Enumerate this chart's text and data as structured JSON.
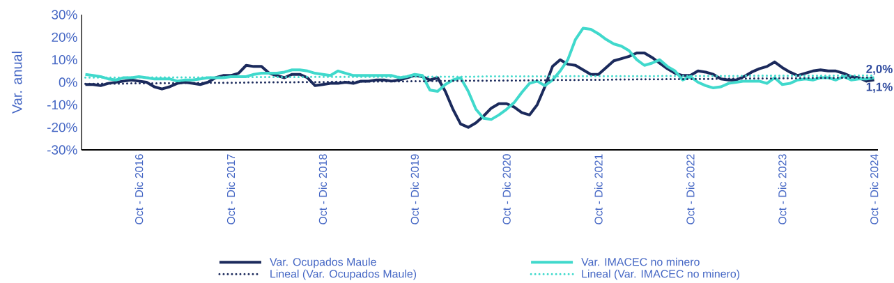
{
  "chart_data": {
    "type": "line",
    "ylabel": "Var. anual",
    "categories": [
      null,
      null,
      null,
      null,
      null,
      null,
      null,
      "Oct - Dic 2016",
      null,
      null,
      null,
      null,
      null,
      null,
      null,
      null,
      null,
      null,
      null,
      "Oct - Dic 2017",
      null,
      null,
      null,
      null,
      null,
      null,
      null,
      null,
      null,
      null,
      null,
      "Oct - Dic 2018",
      null,
      null,
      null,
      null,
      null,
      null,
      null,
      null,
      null,
      null,
      null,
      "Oct - Dic 2019",
      null,
      null,
      null,
      null,
      null,
      null,
      null,
      null,
      null,
      null,
      null,
      "Oct - Dic 2020",
      null,
      null,
      null,
      null,
      null,
      null,
      null,
      null,
      null,
      null,
      null,
      "Oct - Dic 2021",
      null,
      null,
      null,
      null,
      null,
      null,
      null,
      null,
      null,
      null,
      null,
      "Oct - Dic 2022",
      null,
      null,
      null,
      null,
      null,
      null,
      null,
      null,
      null,
      null,
      null,
      "Oct - Dic 2023",
      null,
      null,
      null,
      null,
      null,
      null,
      null,
      null,
      null,
      null,
      null,
      "Oct - Dic 2024"
    ],
    "ylim": [
      -30,
      30
    ],
    "yticks": [
      {
        "value": -30,
        "label": "-30%"
      },
      {
        "value": -20,
        "label": "-20%"
      },
      {
        "value": -10,
        "label": "-10%"
      },
      {
        "value": 0,
        "label": "0%"
      },
      {
        "value": 10,
        "label": "10%"
      },
      {
        "value": 20,
        "label": "20%"
      },
      {
        "value": 30,
        "label": "30%"
      }
    ],
    "legend": "bottom",
    "series": [
      {
        "name": "Var. Ocupados Maule",
        "color": "#1b2a5c",
        "line_style": "solid",
        "values": [
          -1,
          -1,
          -1.5,
          -0.5,
          0,
          0.5,
          1,
          0.5,
          0,
          -2,
          -3,
          -2,
          -0.5,
          0,
          -0.5,
          -1,
          0,
          2,
          3,
          3,
          4,
          7.5,
          7,
          7,
          4,
          3,
          2,
          3.5,
          3.5,
          2,
          -1.5,
          -1,
          -0.5,
          -0.5,
          0,
          -0.5,
          0.5,
          0.5,
          1,
          1,
          0.5,
          1,
          2,
          3,
          2.5,
          1,
          2,
          -4,
          -12,
          -18.5,
          -20,
          -18,
          -15,
          -11.5,
          -9.5,
          -9.5,
          -11,
          -13.5,
          -14.5,
          -10,
          -2,
          7,
          10,
          8,
          7.5,
          5.5,
          3.5,
          3.5,
          6.5,
          9.5,
          10.5,
          11.5,
          13,
          13,
          11,
          8.5,
          6,
          4,
          3,
          3,
          5,
          4.5,
          3.5,
          1.5,
          1,
          1,
          2.5,
          4.5,
          6,
          7,
          9,
          6.5,
          4.5,
          3,
          4,
          5,
          5.5,
          5,
          5,
          4,
          2.5,
          2,
          0.5,
          1.1
        ],
        "value_labels": [
          null,
          null,
          null,
          null,
          null,
          null,
          null,
          null,
          null,
          null,
          null,
          null,
          null,
          null,
          null,
          null,
          null,
          null,
          null,
          null,
          null,
          null,
          null,
          null,
          null,
          null,
          null,
          null,
          null,
          null,
          null,
          null,
          null,
          null,
          null,
          null,
          null,
          null,
          null,
          null,
          null,
          null,
          null,
          null,
          null,
          null,
          null,
          null,
          null,
          null,
          null,
          null,
          null,
          null,
          null,
          null,
          null,
          null,
          null,
          null,
          null,
          null,
          null,
          null,
          null,
          null,
          null,
          null,
          null,
          null,
          null,
          null,
          null,
          null,
          null,
          null,
          null,
          null,
          null,
          null,
          null,
          null,
          null,
          null,
          null,
          null,
          null,
          null,
          null,
          null,
          null,
          null,
          null,
          null,
          null,
          null,
          null,
          null,
          null,
          null,
          null,
          null,
          null,
          "1,1%"
        ]
      },
      {
        "name": "Var. IMACEC no minero",
        "color": "#40d9cc",
        "line_style": "solid",
        "values": [
          3.5,
          3,
          2.5,
          1.5,
          1,
          2,
          2,
          2.5,
          2,
          1.5,
          1.5,
          1.5,
          0.5,
          1,
          1,
          1.5,
          2,
          2,
          2,
          2.5,
          2.5,
          2.5,
          3.5,
          4,
          4,
          4,
          4.5,
          5.5,
          5.5,
          5,
          4,
          3.5,
          3,
          5,
          4,
          3,
          3,
          3,
          3,
          3,
          3,
          2,
          2.5,
          3.5,
          3,
          -3.5,
          -4,
          -1,
          1,
          2,
          -4,
          -12,
          -16,
          -16.5,
          -14.5,
          -12,
          -9,
          -4.5,
          -0.5,
          0.5,
          -1.5,
          1,
          5,
          10,
          19,
          24,
          23.5,
          21.5,
          19,
          17,
          16,
          14,
          10,
          7.5,
          8.5,
          10,
          7,
          5,
          1,
          2.5,
          0,
          -1.5,
          -2.5,
          -2,
          -0.5,
          0,
          0.5,
          0.5,
          0.5,
          -0.5,
          2,
          -1,
          -0.5,
          1,
          1.5,
          1,
          2,
          2,
          1,
          2.5,
          1,
          1.5,
          1.5,
          2
        ],
        "value_labels": [
          null,
          null,
          null,
          null,
          null,
          null,
          null,
          null,
          null,
          null,
          null,
          null,
          null,
          null,
          null,
          null,
          null,
          null,
          null,
          null,
          null,
          null,
          null,
          null,
          null,
          null,
          null,
          null,
          null,
          null,
          null,
          null,
          null,
          null,
          null,
          null,
          null,
          null,
          null,
          null,
          null,
          null,
          null,
          null,
          null,
          null,
          null,
          null,
          null,
          null,
          null,
          null,
          null,
          null,
          null,
          null,
          null,
          null,
          null,
          null,
          null,
          null,
          null,
          null,
          null,
          null,
          null,
          null,
          null,
          null,
          null,
          null,
          null,
          null,
          null,
          null,
          null,
          null,
          null,
          null,
          null,
          null,
          null,
          null,
          null,
          null,
          null,
          null,
          null,
          null,
          null,
          null,
          null,
          null,
          null,
          null,
          null,
          null,
          null,
          null,
          null,
          null,
          null,
          "2,0%"
        ]
      },
      {
        "name": "Lineal (Var. Ocupados Maule)",
        "type": "line",
        "color": "#1b2a5c",
        "line_style": "dotted",
        "values": [
          -0.7,
          -0.7,
          -0.6,
          -0.6,
          -0.6,
          -0.6,
          -0.5,
          -0.5,
          -0.5,
          -0.5,
          -0.4,
          -0.4,
          -0.4,
          -0.3,
          -0.3,
          -0.3,
          -0.3,
          -0.2,
          -0.2,
          -0.2,
          -0.2,
          -0.1,
          -0.1,
          -0.1,
          0,
          0,
          0,
          0,
          0.1,
          0.1,
          0.1,
          0.1,
          0.2,
          0.2,
          0.2,
          0.3,
          0.3,
          0.3,
          0.3,
          0.4,
          0.4,
          0.4,
          0.4,
          0.5,
          0.5,
          0.5,
          0.6,
          0.6,
          0.6,
          0.6,
          0.7,
          0.7,
          0.7,
          0.7,
          0.8,
          0.8,
          0.8,
          0.8,
          0.9,
          0.9,
          0.9,
          1.0,
          1.0,
          1.0,
          1.0,
          1.1,
          1.1,
          1.1,
          1.1,
          1.2,
          1.2,
          1.2,
          1.3,
          1.3,
          1.3,
          1.3,
          1.4,
          1.4,
          1.4,
          1.4,
          1.5,
          1.5,
          1.5,
          1.6,
          1.6,
          1.6,
          1.6,
          1.7,
          1.7,
          1.7,
          1.7,
          1.8,
          1.8,
          1.8,
          1.9,
          1.9,
          1.9,
          1.9,
          2.0,
          2.0,
          2.0,
          2.0,
          2.1,
          2.1
        ]
      },
      {
        "name": "Lineal (Var. IMACEC no minero)",
        "type": "line",
        "color": "#40d9cc",
        "line_style": "dotted",
        "values": [
          2.1,
          2.1,
          2.1,
          2.1,
          2.1,
          2.1,
          2.2,
          2.2,
          2.2,
          2.2,
          2.2,
          2.2,
          2.2,
          2.2,
          2.2,
          2.2,
          2.2,
          2.2,
          2.3,
          2.3,
          2.3,
          2.3,
          2.3,
          2.3,
          2.3,
          2.3,
          2.3,
          2.3,
          2.3,
          2.4,
          2.4,
          2.4,
          2.4,
          2.4,
          2.4,
          2.4,
          2.4,
          2.4,
          2.4,
          2.4,
          2.4,
          2.5,
          2.5,
          2.5,
          2.5,
          2.5,
          2.5,
          2.5,
          2.5,
          2.5,
          2.5,
          2.5,
          2.6,
          2.6,
          2.6,
          2.6,
          2.6,
          2.6,
          2.6,
          2.6,
          2.6,
          2.6,
          2.6,
          2.7,
          2.7,
          2.7,
          2.7,
          2.7,
          2.7,
          2.7,
          2.7,
          2.7,
          2.7,
          2.7,
          2.7,
          2.8,
          2.8,
          2.8,
          2.8,
          2.8,
          2.8,
          2.8,
          2.8,
          2.8,
          2.8,
          2.8,
          2.9,
          2.9,
          2.9,
          2.9,
          2.9,
          2.9,
          2.9,
          2.9,
          2.9,
          2.9,
          2.9,
          2.9,
          3.0,
          3.0,
          3.0,
          3.0,
          3.0,
          3.0
        ]
      }
    ]
  }
}
